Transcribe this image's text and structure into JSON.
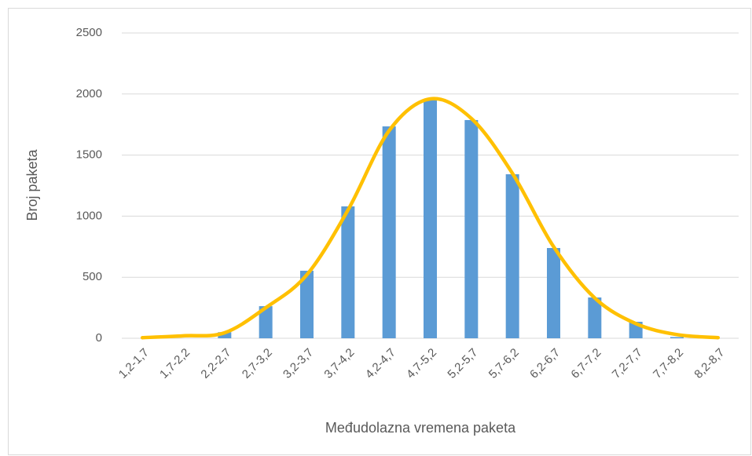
{
  "chart_data": {
    "type": "bar",
    "x_label": "Međudolazna vremena paketa",
    "y_label": "Broj paketa",
    "categories": [
      "1,2-1,7",
      "1,7-2,2",
      "2,2-2,7",
      "2,7-3,2",
      "3,2-3,7",
      "3,7-4,2",
      "4,2-4,7",
      "4,7-5,2",
      "5,2-5,7",
      "5,7-6,2",
      "6,2-6,7",
      "6,7-7,2",
      "7,2-7,7",
      "7,7-8,2",
      "8,2-8,7"
    ],
    "series": [
      {
        "type": "bar",
        "color": "#5b9bd5",
        "values": [
          0,
          0,
          50,
          263,
          553,
          1080,
          1735,
          1950,
          1787,
          1343,
          739,
          334,
          135,
          10,
          0
        ]
      },
      {
        "type": "line",
        "color": "#ffc000",
        "values": [
          5,
          20,
          45,
          250,
          520,
          1050,
          1700,
          1960,
          1800,
          1350,
          750,
          330,
          120,
          30,
          5
        ]
      }
    ],
    "ylim": [
      0,
      2500
    ],
    "yticks": [
      0,
      500,
      1000,
      1500,
      2000,
      2500
    ],
    "grid": true
  }
}
